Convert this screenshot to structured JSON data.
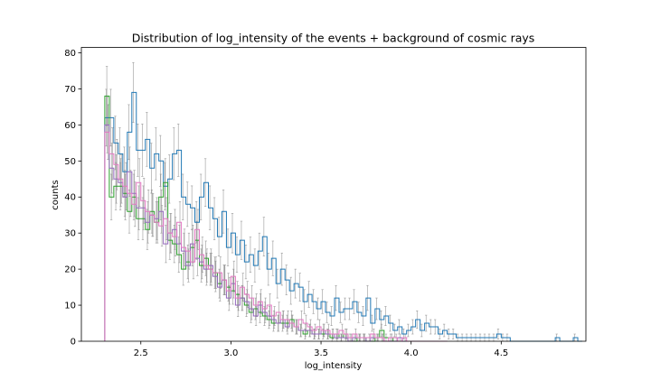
{
  "chart_data": {
    "type": "histogram",
    "title": "Distribution of log_intensity of the events + background of cosmic rays",
    "xlabel": "log_intensity",
    "ylabel": "counts",
    "xlim": [
      2.17,
      4.97
    ],
    "ylim": [
      0,
      81.5
    ],
    "x_ticks": [
      2.5,
      3.0,
      3.5,
      4.0,
      4.5
    ],
    "x_tick_labels": [
      "2.5",
      "3.0",
      "3.5",
      "4.0",
      "4.5"
    ],
    "y_ticks": [
      0,
      10,
      20,
      30,
      40,
      50,
      60,
      70,
      80
    ],
    "y_tick_labels": [
      "0",
      "10",
      "20",
      "30",
      "40",
      "50",
      "60",
      "70",
      "80"
    ],
    "bin_start": 2.3,
    "bin_width": 0.025,
    "error_bars": "sqrt(counts)",
    "series": [
      {
        "color": "#1f77b4",
        "values": [
          62,
          62,
          55,
          52,
          47,
          58,
          69,
          53,
          53,
          56,
          48,
          52,
          50,
          43,
          45,
          52,
          53,
          40,
          38,
          37,
          33,
          40,
          44,
          37,
          34,
          29,
          36,
          26,
          30,
          24,
          28,
          22,
          24,
          21,
          25,
          29,
          20,
          23,
          16,
          20,
          17,
          14,
          16,
          15,
          11,
          13,
          11,
          9,
          11,
          8,
          7,
          12,
          8,
          9,
          9,
          11,
          8,
          7,
          12,
          5,
          9,
          6,
          7,
          5,
          3,
          4,
          2,
          3,
          4,
          6,
          3,
          5,
          4,
          4,
          2,
          3,
          2,
          2,
          1,
          1,
          1,
          1,
          1,
          1,
          1,
          1,
          1,
          2,
          1,
          1,
          0,
          0,
          0,
          0,
          0,
          0,
          0,
          0,
          0,
          0,
          1,
          0,
          0,
          0,
          1,
          0
        ]
      },
      {
        "color": "#2ca02c",
        "values": [
          68,
          40,
          43,
          43,
          41,
          36,
          40,
          34,
          34,
          31,
          36,
          33,
          40,
          44,
          28,
          27,
          24,
          20,
          22,
          26,
          28,
          21,
          23,
          20,
          19,
          16,
          17,
          15,
          14,
          13,
          12,
          10,
          8,
          9,
          8,
          7,
          6,
          5,
          5,
          5,
          5,
          6,
          4,
          3,
          2,
          3,
          2,
          2,
          2,
          2,
          1,
          2,
          1,
          2,
          1,
          0,
          1,
          1,
          0,
          0,
          1,
          3,
          1,
          1,
          0,
          0,
          0,
          0,
          0,
          0,
          0,
          0,
          0,
          0,
          0,
          0
        ]
      },
      {
        "color": "#9467bd",
        "values": [
          60,
          48,
          45,
          44,
          40,
          47,
          41,
          37,
          37,
          33,
          35,
          34,
          36,
          27,
          30,
          31,
          27,
          25,
          21,
          27,
          23,
          22,
          20,
          21,
          18,
          15,
          17,
          12,
          16,
          10,
          12,
          11,
          9,
          7,
          10,
          8,
          7,
          6,
          5,
          6,
          4,
          5,
          4,
          3,
          3,
          3,
          2,
          2,
          3,
          2,
          2,
          1,
          1,
          1,
          0,
          1,
          1,
          1,
          0,
          1,
          1,
          1,
          0,
          0,
          0,
          1,
          0,
          0,
          0,
          0,
          0,
          0,
          0,
          0,
          0,
          0
        ]
      },
      {
        "color": "#e377c2",
        "values": [
          58,
          52,
          49,
          45,
          43,
          41,
          38,
          44,
          39,
          36,
          35,
          33,
          32,
          34,
          30,
          29,
          33,
          26,
          25,
          22,
          31,
          24,
          21,
          20,
          19,
          19,
          17,
          14,
          18,
          12,
          15,
          13,
          12,
          10,
          11,
          9,
          10,
          7,
          8,
          6,
          6,
          5,
          4,
          6,
          5,
          4,
          3,
          4,
          3,
          3,
          2,
          2,
          3,
          2,
          1,
          2,
          1,
          1,
          1,
          2,
          1,
          1,
          0,
          1,
          1,
          0,
          1,
          0,
          0,
          0,
          0,
          0,
          0,
          0,
          0,
          0
        ]
      }
    ]
  }
}
